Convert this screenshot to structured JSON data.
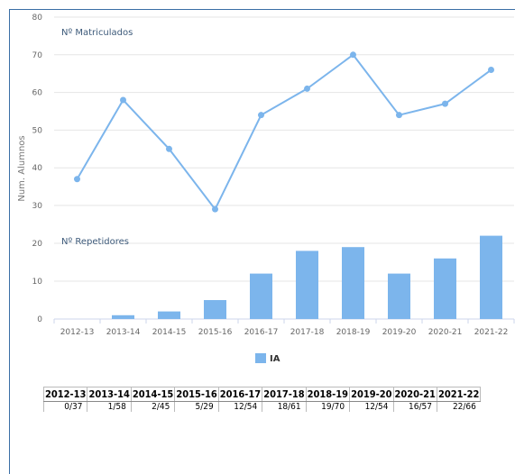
{
  "chart_data": [
    {
      "type": "line",
      "title": "Nº Matriculados",
      "ylabel": "Num. Alumnos",
      "ylim": [
        0,
        80
      ],
      "yticks": [
        80,
        70,
        60,
        50,
        40,
        30
      ],
      "categories": [
        "2012-13",
        "2013-14",
        "2014-15",
        "2015-16",
        "2016-17",
        "2017-18",
        "2018-19",
        "2019-20",
        "2020-21",
        "2021-22"
      ],
      "series": [
        {
          "values": [
            37,
            58,
            45,
            29,
            54,
            61,
            70,
            54,
            57,
            66
          ]
        }
      ],
      "color": "#7cb5ec",
      "grid": true
    },
    {
      "type": "bar",
      "title": "Nº Repetidores",
      "ylim": [
        0,
        20
      ],
      "yticks": [
        20,
        10,
        0
      ],
      "categories": [
        "2012-13",
        "2013-14",
        "2014-15",
        "2015-16",
        "2016-17",
        "2017-18",
        "2018-19",
        "2019-20",
        "2020-21",
        "2021-22"
      ],
      "series": [
        {
          "name": "IA",
          "values": [
            0,
            1,
            2,
            5,
            12,
            18,
            19,
            12,
            16,
            22
          ]
        }
      ],
      "color": "#7cb5ec",
      "legend": "bottom-center",
      "grid": true
    }
  ],
  "table": {
    "headers": [
      "2012-13",
      "2013-14",
      "2014-15",
      "2015-16",
      "2016-17",
      "2017-18",
      "2018-19",
      "2019-20",
      "2020-21",
      "2021-22"
    ],
    "values": [
      "0/37",
      "1/58",
      "2/45",
      "5/29",
      "12/54",
      "18/61",
      "19/70",
      "12/54",
      "16/57",
      "22/66"
    ]
  }
}
